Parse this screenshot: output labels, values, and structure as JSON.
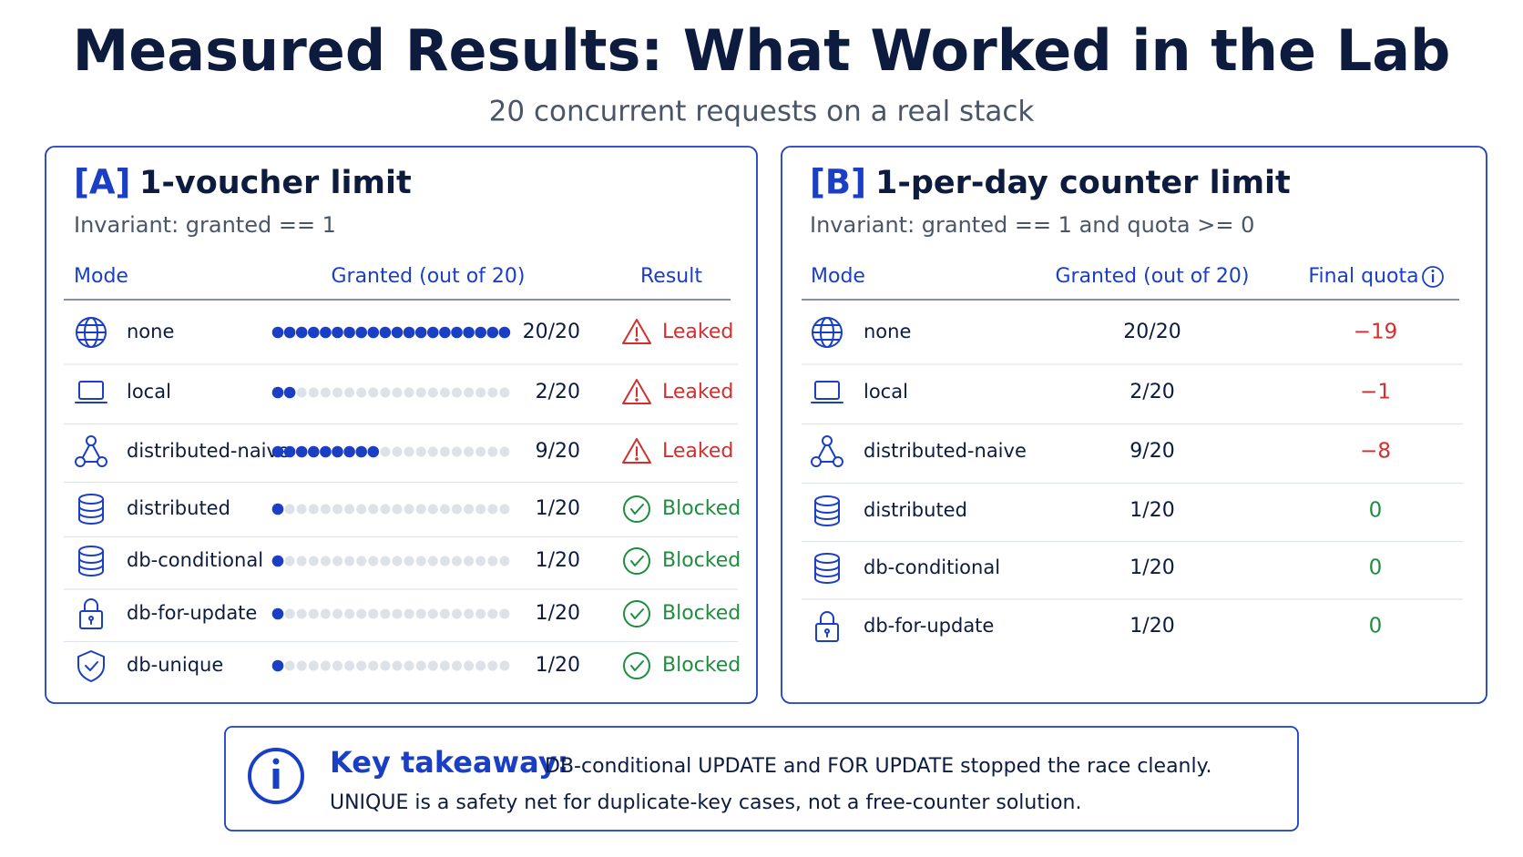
{
  "title": "Measured Results: What Worked in the Lab",
  "subtitle": "20 concurrent requests on a real stack",
  "panels": [
    {
      "tag": "[A]",
      "title": "1-voucher limit",
      "invariant": "Invariant: granted == 1",
      "columns": [
        "Mode",
        "Granted (out of 20)",
        "Result"
      ],
      "capacity": 20,
      "rows": [
        {
          "mode": "none",
          "granted": {
            "value": 20,
            "label": "20/20"
          },
          "result": "Leaked",
          "color": "#d32f2f"
        },
        {
          "mode": "local",
          "granted": {
            "value": 2,
            "label": "2/20"
          },
          "result": "Leaked",
          "color": "#d32f2f"
        },
        {
          "mode": "distributed-naive",
          "granted": {
            "value": 9,
            "label": "9/20"
          },
          "result": "Leaked",
          "color": "#d32f2f"
        },
        {
          "mode": "distributed",
          "granted": {
            "value": 1,
            "label": "1/20"
          },
          "result": "Blocked",
          "color": "#1e8e3e"
        },
        {
          "mode": "db-conditional",
          "granted": {
            "value": 1,
            "label": "1/20"
          },
          "result": "Blocked",
          "color": "#1e8e3e"
        },
        {
          "mode": "db-for-update",
          "granted": {
            "value": 1,
            "label": "1/20"
          },
          "result": "Blocked",
          "color": "#1e8e3e"
        },
        {
          "mode": "db-unique",
          "granted": {
            "value": 1,
            "label": "1/20"
          },
          "result": "Blocked",
          "color": "#1e8e3e"
        }
      ]
    },
    {
      "tag": "[B]",
      "title": "1-per-day counter limit",
      "invariant": "Invariant: granted == 1 and quota >= 0",
      "columns": [
        "Mode",
        "Granted (out of 20)",
        "Final quota"
      ],
      "rows": [
        {
          "mode": "none",
          "granted": {
            "value": 20,
            "label": "20/20"
          },
          "quota": {
            "value": -19,
            "label": "−19"
          }
        },
        {
          "mode": "local",
          "granted": {
            "value": 2,
            "label": "2/20"
          },
          "quota": {
            "value": -1,
            "label": "−1"
          }
        },
        {
          "mode": "distributed-naive",
          "granted": {
            "value": 9,
            "label": "9/20"
          },
          "quota": {
            "value": -8,
            "label": "−8"
          }
        },
        {
          "mode": "distributed",
          "granted": {
            "value": 1,
            "label": "1/20"
          },
          "quota": 0
        },
        {
          "mode": "db-conditional",
          "granted": {
            "value": 1,
            "label": "1/20"
          },
          "quota": 0
        },
        {
          "mode": "db-for-update",
          "granted": {
            "value": 1,
            "label": "1/20"
          },
          "quota": 0
        }
      ]
    }
  ],
  "takeaway": {
    "heading": "Key takeaway:",
    "line1": "DB-conditional UPDATE and FOR UPDATE stopped the race cleanly.",
    "line2": "UNIQUE is a safety net for duplicate-key cases, not a free-counter solution."
  }
}
